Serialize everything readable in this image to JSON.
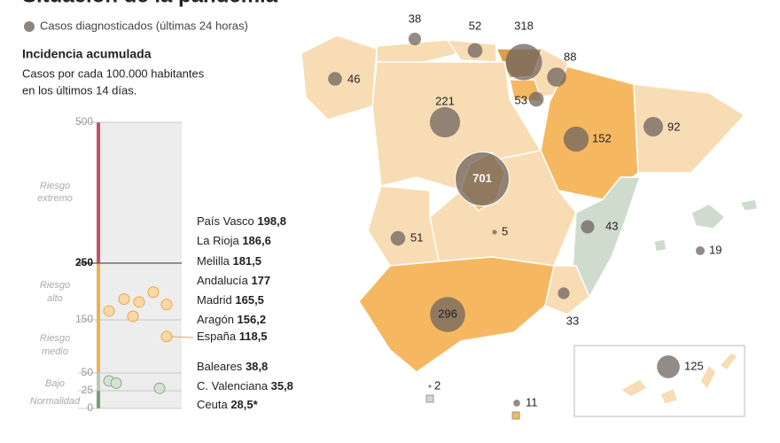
{
  "title": "Situación de la pandemia",
  "legend": "Casos diagnosticados (últimas 24 horas)",
  "subtitle": "Incidencia acumulada",
  "description": [
    "Casos por cada 100.000 habitantes",
    "en los últimos 14 días."
  ],
  "scale": {
    "yticks": [
      0,
      25,
      50,
      150,
      250,
      500
    ],
    "levels": [
      [
        "Riesgo",
        "extremo"
      ],
      [
        "Riesgo",
        "alto"
      ],
      [
        "Riesgo",
        "medio"
      ],
      [
        "Bajo"
      ],
      [
        "Normalidad"
      ]
    ]
  },
  "ranking": {
    "names": [
      "País Vasco",
      "La Rioja",
      "Melilla",
      "Andalucía",
      "Madrid",
      "Aragón",
      "España",
      "Baleares",
      "C. Valenciana",
      "Ceuta"
    ],
    "values": [
      198.8,
      186.6,
      181.5,
      177,
      165.5,
      156.2,
      118.5,
      38.8,
      35.8,
      28.5
    ],
    "value_labels": [
      "198,8",
      "186,6",
      "181,5",
      "177",
      "165,5",
      "156,2",
      "118,5",
      "38,8",
      "35,8",
      "28,5*"
    ]
  },
  "map": {
    "bubble_values": [
      38,
      52,
      318,
      46,
      88,
      221,
      53,
      152,
      92,
      701,
      51,
      5,
      43,
      19,
      296,
      33,
      2,
      11,
      125
    ]
  }
}
